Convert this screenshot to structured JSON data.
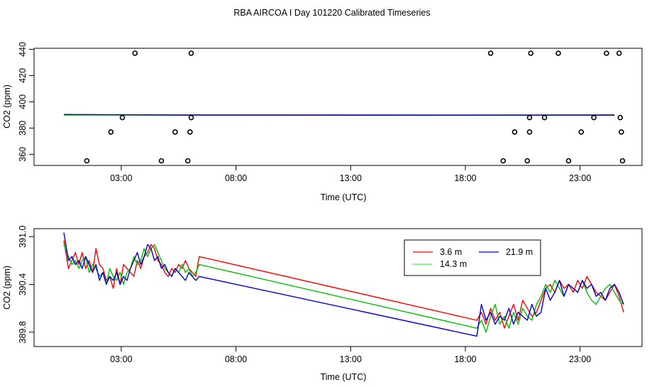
{
  "title": "RBA AIRCOA I  Day 101220  Calibrated Timeseries",
  "chart_data": [
    {
      "type": "line",
      "title": "",
      "xlabel": "Time (UTC)",
      "ylabel": "CO2 (ppm)",
      "xlim": [
        -0.8,
        25.7
      ],
      "ylim": [
        351.5,
        440.8
      ],
      "xticks": [
        3,
        8,
        13,
        18,
        23
      ],
      "xtick_labels": [
        "03:00",
        "08:00",
        "13:00",
        "18:00",
        "23:00"
      ],
      "yticks": [
        360,
        380,
        400,
        420,
        440
      ],
      "ytick_labels": [
        "360",
        "380",
        "400",
        "420",
        "440"
      ],
      "grid": false,
      "points": [
        {
          "x": 1.5,
          "y": 355
        },
        {
          "x": 2.55,
          "y": 377
        },
        {
          "x": 3.05,
          "y": 388
        },
        {
          "x": 3.6,
          "y": 437
        },
        {
          "x": 4.75,
          "y": 355
        },
        {
          "x": 5.35,
          "y": 377
        },
        {
          "x": 5.9,
          "y": 355
        },
        {
          "x": 6.0,
          "y": 377
        },
        {
          "x": 6.05,
          "y": 388
        },
        {
          "x": 6.05,
          "y": 437
        },
        {
          "x": 19.1,
          "y": 437
        },
        {
          "x": 19.65,
          "y": 355
        },
        {
          "x": 20.15,
          "y": 377
        },
        {
          "x": 20.7,
          "y": 355
        },
        {
          "x": 20.8,
          "y": 377
        },
        {
          "x": 20.8,
          "y": 388
        },
        {
          "x": 20.85,
          "y": 437
        },
        {
          "x": 21.45,
          "y": 388
        },
        {
          "x": 22.05,
          "y": 437
        },
        {
          "x": 22.5,
          "y": 355
        },
        {
          "x": 23.05,
          "y": 377
        },
        {
          "x": 23.6,
          "y": 388
        },
        {
          "x": 24.15,
          "y": 437
        },
        {
          "x": 24.7,
          "y": 437
        },
        {
          "x": 24.75,
          "y": 388
        },
        {
          "x": 24.8,
          "y": 377
        },
        {
          "x": 24.85,
          "y": 355
        }
      ],
      "series": [
        {
          "color": "#ff0000",
          "x": [
            0.5,
            4.5,
            8.0,
            9.0,
            18.0,
            24.5
          ],
          "y": [
            390.2,
            390.0,
            390.0,
            389.9,
            389.9,
            389.9
          ]
        },
        {
          "color": "#00cc00",
          "x": [
            0.5,
            4.5,
            8.0,
            14.5,
            18.0,
            24.5
          ],
          "y": [
            390.0,
            389.9,
            390.0,
            389.9,
            389.8,
            390.0
          ]
        },
        {
          "color": "#0000cc",
          "x": [
            0.5,
            5.5,
            13.0,
            18.0,
            24.5
          ],
          "y": [
            390.3,
            389.9,
            389.8,
            389.8,
            389.9
          ]
        }
      ]
    },
    {
      "type": "line",
      "title": "",
      "xlabel": "Time (UTC)",
      "ylabel": "CO2 (ppm)",
      "xlim": [
        -0.8,
        25.7
      ],
      "ylim": [
        389.62,
        391.1
      ],
      "xticks": [
        3,
        8,
        13,
        18,
        23
      ],
      "xtick_labels": [
        "03:00",
        "08:00",
        "13:00",
        "18:00",
        "23:00"
      ],
      "yticks": [
        389.8,
        390.4,
        391.0
      ],
      "ytick_labels": [
        "389.8",
        "390.4",
        "391.0"
      ],
      "grid": false,
      "legend": "top-right",
      "series": [
        {
          "name": "3.6 m",
          "color": "#ff0000",
          "x": [
            0.5,
            0.7,
            0.85,
            1.0,
            1.15,
            1.3,
            1.45,
            1.6,
            1.75,
            1.9,
            2.05,
            2.2,
            2.35,
            2.5,
            2.65,
            2.8,
            2.95,
            3.1,
            3.25,
            3.4,
            3.55,
            3.7,
            3.85,
            4.0,
            4.15,
            4.3,
            4.45,
            4.6,
            4.75,
            4.9,
            5.05,
            5.2,
            5.35,
            5.5,
            5.65,
            5.8,
            5.95,
            6.1,
            6.25,
            6.4,
            18.5,
            18.7,
            18.9,
            19.1,
            19.3,
            19.5,
            19.7,
            19.9,
            20.1,
            20.3,
            20.5,
            20.7,
            20.9,
            21.1,
            21.3,
            21.5,
            21.7,
            21.9,
            22.1,
            22.3,
            22.5,
            22.7,
            22.9,
            23.1,
            23.3,
            23.5,
            23.7,
            23.9,
            24.1,
            24.3,
            24.5,
            24.7,
            24.9
          ],
          "y": [
            390.95,
            390.6,
            390.7,
            390.8,
            390.65,
            390.8,
            390.6,
            390.7,
            390.55,
            390.85,
            390.65,
            390.6,
            390.45,
            390.5,
            390.35,
            390.6,
            390.4,
            390.65,
            390.6,
            390.55,
            390.5,
            390.7,
            390.6,
            390.75,
            390.8,
            390.9,
            390.85,
            390.7,
            390.65,
            390.55,
            390.5,
            390.6,
            390.55,
            390.65,
            390.6,
            390.7,
            390.6,
            390.55,
            390.5,
            390.75,
            389.95,
            390.05,
            389.9,
            390.1,
            389.95,
            390.05,
            389.85,
            390.0,
            390.15,
            389.95,
            390.2,
            390.1,
            390.0,
            390.05,
            390.2,
            390.35,
            390.4,
            390.3,
            390.45,
            390.35,
            390.4,
            390.3,
            390.45,
            390.35,
            390.5,
            390.4,
            390.3,
            390.25,
            390.2,
            390.3,
            390.4,
            390.25,
            390.05
          ]
        },
        {
          "name": "14.3 m",
          "color": "#00c000",
          "x": [
            0.5,
            0.7,
            0.85,
            1.0,
            1.15,
            1.3,
            1.45,
            1.6,
            1.75,
            1.9,
            2.05,
            2.2,
            2.35,
            2.5,
            2.65,
            2.8,
            2.95,
            3.1,
            3.25,
            3.4,
            3.55,
            3.7,
            3.85,
            4.0,
            4.15,
            4.3,
            4.45,
            4.6,
            4.75,
            4.9,
            5.05,
            5.2,
            5.35,
            5.5,
            5.65,
            5.8,
            5.95,
            6.1,
            6.25,
            6.4,
            18.5,
            18.7,
            18.9,
            19.1,
            19.3,
            19.5,
            19.7,
            19.9,
            20.1,
            20.3,
            20.5,
            20.7,
            20.9,
            21.1,
            21.3,
            21.5,
            21.7,
            21.9,
            22.1,
            22.3,
            22.5,
            22.7,
            22.9,
            23.1,
            23.3,
            23.5,
            23.7,
            23.9,
            24.1,
            24.3,
            24.5,
            24.7,
            24.9
          ],
          "y": [
            390.9,
            390.75,
            390.65,
            390.7,
            390.6,
            390.7,
            390.75,
            390.55,
            390.65,
            390.6,
            390.5,
            390.55,
            390.4,
            390.6,
            390.5,
            390.45,
            390.55,
            390.4,
            390.55,
            390.6,
            390.75,
            390.65,
            390.7,
            390.85,
            390.75,
            390.85,
            390.9,
            390.8,
            390.7,
            390.6,
            390.55,
            390.5,
            390.6,
            390.55,
            390.65,
            390.55,
            390.6,
            390.5,
            390.55,
            390.65,
            389.85,
            389.95,
            389.8,
            390.0,
            390.15,
            389.9,
            390.0,
            389.85,
            390.05,
            389.9,
            390.1,
            390.0,
            389.95,
            390.15,
            390.25,
            390.4,
            390.3,
            390.45,
            390.35,
            390.25,
            390.4,
            390.35,
            390.3,
            390.45,
            390.3,
            390.2,
            390.15,
            390.25,
            390.35,
            390.4,
            390.3,
            390.2,
            390.15
          ]
        },
        {
          "name": "21.9 m",
          "color": "#0000cc",
          "x": [
            0.5,
            0.7,
            0.85,
            1.0,
            1.15,
            1.3,
            1.45,
            1.6,
            1.75,
            1.9,
            2.05,
            2.2,
            2.35,
            2.5,
            2.65,
            2.8,
            2.95,
            3.1,
            3.25,
            3.4,
            3.55,
            3.7,
            3.85,
            4.0,
            4.15,
            4.3,
            4.45,
            4.6,
            4.75,
            4.9,
            5.05,
            5.2,
            5.35,
            5.5,
            5.65,
            5.8,
            5.95,
            6.1,
            6.25,
            6.4,
            18.5,
            18.7,
            18.9,
            19.1,
            19.3,
            19.5,
            19.7,
            19.9,
            20.1,
            20.3,
            20.5,
            20.7,
            20.9,
            21.1,
            21.3,
            21.5,
            21.7,
            21.9,
            22.1,
            22.3,
            22.5,
            22.7,
            22.9,
            23.1,
            23.3,
            23.5,
            23.7,
            23.9,
            24.1,
            24.3,
            24.5,
            24.7,
            24.9
          ],
          "y": [
            391.05,
            390.7,
            390.75,
            390.65,
            390.7,
            390.6,
            390.75,
            390.65,
            390.55,
            390.65,
            390.45,
            390.55,
            390.4,
            390.5,
            390.45,
            390.55,
            390.4,
            390.5,
            390.45,
            390.6,
            390.7,
            390.8,
            390.65,
            390.75,
            390.9,
            390.85,
            390.7,
            390.75,
            390.6,
            390.65,
            390.55,
            390.5,
            390.6,
            390.55,
            390.5,
            390.45,
            390.55,
            390.5,
            390.45,
            390.5,
            389.75,
            390.15,
            389.95,
            390.05,
            389.9,
            390.0,
            389.95,
            390.1,
            389.9,
            390.05,
            390.0,
            389.95,
            390.15,
            390.0,
            390.05,
            390.35,
            390.2,
            390.3,
            390.45,
            390.25,
            390.4,
            390.35,
            390.3,
            390.45,
            390.35,
            390.4,
            390.25,
            390.3,
            390.2,
            390.35,
            390.4,
            390.3,
            390.15
          ]
        }
      ]
    }
  ]
}
